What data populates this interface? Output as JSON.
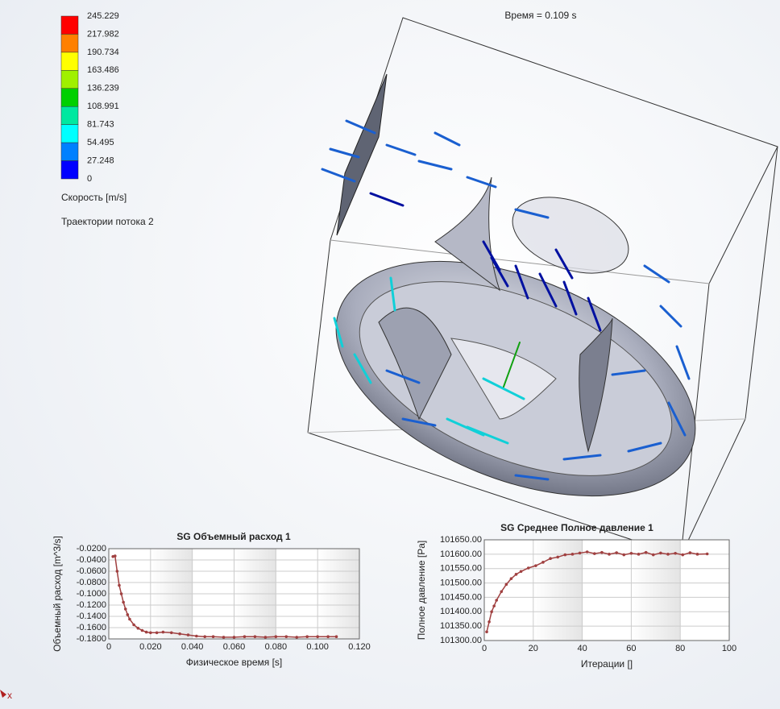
{
  "time_label": "Время = 0.109 s",
  "legend": {
    "title": "Скорость [m/s]",
    "subtitle": "Траектории потока 2",
    "ticks": [
      245.229,
      217.982,
      190.734,
      163.486,
      136.239,
      108.991,
      81.743,
      54.495,
      27.248,
      0
    ],
    "colors": [
      "#ff0000",
      "#ff8000",
      "#ffff00",
      "#a0f000",
      "#00d000",
      "#00e8a0",
      "#00ffff",
      "#0080ff",
      "#0000ff"
    ]
  },
  "triad_label": "x",
  "chart_data": [
    {
      "type": "line",
      "title": "SG Объемный расход 1",
      "x_label": "Физическое время [s]",
      "y_label": "Объемный расход [m^3/s]",
      "xlim": [
        0,
        0.12
      ],
      "ylim": [
        -0.18,
        -0.02
      ],
      "xticks": [
        0,
        {
          "value": 0.02,
          "label": "0.020"
        },
        {
          "value": 0.04,
          "label": "0.040"
        },
        {
          "value": 0.06,
          "label": "0.060"
        },
        {
          "value": 0.08,
          "label": "0.080"
        },
        {
          "value": 0.1,
          "label": "0.100"
        },
        {
          "value": 0.12,
          "label": "0.120"
        }
      ],
      "yticks": [
        {
          "value": -0.02,
          "label": "-0.0200"
        },
        {
          "value": -0.04,
          "label": "-0.0400"
        },
        {
          "value": -0.06,
          "label": "-0.0600"
        },
        {
          "value": -0.08,
          "label": "-0.0800"
        },
        {
          "value": -0.1,
          "label": "-0.1000"
        },
        {
          "value": -0.12,
          "label": "-0.1200"
        },
        {
          "value": -0.14,
          "label": "-0.1400"
        },
        {
          "value": -0.16,
          "label": "-0.1600"
        },
        {
          "value": -0.18,
          "label": "-0.1800"
        }
      ],
      "grid": true,
      "x": [
        0.002,
        0.003,
        0.004,
        0.005,
        0.006,
        0.007,
        0.008,
        0.009,
        0.01,
        0.012,
        0.014,
        0.016,
        0.018,
        0.02,
        0.023,
        0.026,
        0.03,
        0.034,
        0.038,
        0.042,
        0.046,
        0.05,
        0.055,
        0.06,
        0.065,
        0.07,
        0.075,
        0.08,
        0.085,
        0.09,
        0.095,
        0.1,
        0.105,
        0.109
      ],
      "series": [
        {
          "color": "#a04040",
          "values": [
            -0.034,
            -0.033,
            -0.06,
            -0.085,
            -0.1,
            -0.115,
            -0.127,
            -0.137,
            -0.145,
            -0.155,
            -0.161,
            -0.165,
            -0.168,
            -0.169,
            -0.169,
            -0.168,
            -0.169,
            -0.171,
            -0.173,
            -0.175,
            -0.176,
            -0.176,
            -0.177,
            -0.177,
            -0.176,
            -0.176,
            -0.177,
            -0.176,
            -0.176,
            -0.177,
            -0.176,
            -0.176,
            -0.176,
            -0.176
          ]
        }
      ]
    },
    {
      "type": "line",
      "title": "SG Среднее Полное давление 1",
      "x_label": "Итерации []",
      "y_label": "Полное давление [Pa]",
      "xlim": [
        0,
        100
      ],
      "ylim": [
        101300,
        101650
      ],
      "xticks": [
        0,
        20,
        40,
        60,
        80,
        100
      ],
      "yticks": [
        {
          "value": 101300,
          "label": "101300.00"
        },
        {
          "value": 101350,
          "label": "101350.00"
        },
        {
          "value": 101400,
          "label": "101400.00"
        },
        {
          "value": 101450,
          "label": "101450.00"
        },
        {
          "value": 101500,
          "label": "101500.00"
        },
        {
          "value": 101550,
          "label": "101550.00"
        },
        {
          "value": 101600,
          "label": "101600.00"
        },
        {
          "value": 101650,
          "label": "101650.00"
        }
      ],
      "grid": true,
      "x": [
        1,
        2,
        3,
        4,
        5,
        7,
        9,
        11,
        13,
        15,
        18,
        21,
        24,
        27,
        30,
        33,
        36,
        39,
        42,
        45,
        48,
        51,
        54,
        57,
        60,
        63,
        66,
        69,
        72,
        75,
        78,
        81,
        84,
        87,
        91
      ],
      "series": [
        {
          "color": "#a04040",
          "values": [
            101330,
            101365,
            101400,
            101420,
            101440,
            101470,
            101495,
            101515,
            101530,
            101540,
            101552,
            101560,
            101572,
            101585,
            101590,
            101598,
            101600,
            101604,
            101608,
            101602,
            101606,
            101600,
            101605,
            101598,
            101603,
            101600,
            101606,
            101598,
            101604,
            101600,
            101603,
            101598,
            101605,
            101600,
            101601
          ]
        }
      ]
    }
  ]
}
